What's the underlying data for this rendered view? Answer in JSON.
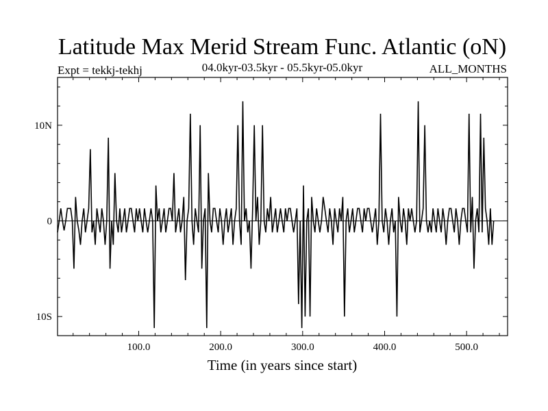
{
  "chart_data": {
    "type": "line",
    "title": "Latitude Max Merid Stream Func. Atlantic (oN)",
    "subtitle_left": "Expt = tekkj-tekhj",
    "subtitle_center": "04.0kyr-03.5kyr - 05.5kyr-05.0kyr",
    "subtitle_right": "ALL_MONTHS",
    "xlabel": "Time (in years since start)",
    "ylabel": "",
    "xlim": [
      1,
      550
    ],
    "ylim": [
      -12,
      15
    ],
    "x_ticks": [
      100,
      200,
      300,
      400,
      500
    ],
    "x_tick_labels": [
      "100.0",
      "200.0",
      "300.0",
      "400.0",
      "500.0"
    ],
    "y_ticks": [
      -10,
      0,
      10
    ],
    "y_tick_labels": [
      "10S",
      "0",
      "10N"
    ],
    "zero_line": true,
    "series": [
      {
        "name": "Latitude Max Merid Stream Func. Atlantic",
        "x_start": 1,
        "x_step": 2,
        "values": [
          -1.2,
          0.0,
          1.3,
          0.0,
          -1.0,
          0.0,
          1.3,
          1.3,
          1.3,
          0.0,
          -5.0,
          2.5,
          0.0,
          -1.0,
          -2.5,
          0.0,
          1.3,
          -1.2,
          0.0,
          1.3,
          7.5,
          -1.2,
          0.0,
          -2.5,
          1.3,
          0.0,
          -1.2,
          1.3,
          0.0,
          -2.5,
          0.0,
          8.7,
          -5.0,
          0.0,
          -2.5,
          5.0,
          0.0,
          -1.2,
          1.3,
          -1.2,
          0.0,
          1.3,
          -1.2,
          0.0,
          1.3,
          1.3,
          0.0,
          -1.2,
          1.3,
          0.0,
          1.3,
          0.0,
          -1.2,
          1.3,
          0.0,
          -1.2,
          0.0,
          1.3,
          0.0,
          -11.2,
          3.7,
          0.0,
          1.3,
          -1.2,
          0.0,
          1.3,
          -1.2,
          0.0,
          1.3,
          1.3,
          0.0,
          5.0,
          -1.2,
          0.0,
          1.3,
          -1.2,
          0.0,
          2.5,
          -6.2,
          0.0,
          1.3,
          11.2,
          0.0,
          -2.5,
          1.3,
          0.0,
          -1.2,
          10.0,
          -5.0,
          0.0,
          1.3,
          -11.2,
          5.0,
          0.0,
          -1.2,
          1.3,
          1.3,
          0.0,
          -1.2,
          1.3,
          0.0,
          -2.5,
          0.0,
          1.3,
          -1.2,
          0.0,
          1.3,
          -2.5,
          0.0,
          1.3,
          10.0,
          0.0,
          -2.5,
          12.5,
          0.0,
          1.3,
          -1.2,
          0.0,
          -5.0,
          1.3,
          10.0,
          0.0,
          2.5,
          -2.5,
          0.0,
          10.0,
          0.0,
          -1.2,
          1.3,
          0.0,
          2.5,
          -1.2,
          0.0,
          1.3,
          -1.2,
          0.0,
          1.3,
          0.0,
          -1.2,
          1.3,
          0.0,
          1.3,
          1.3,
          0.0,
          -1.2,
          0.0,
          1.3,
          -8.7,
          0.0,
          -11.2,
          3.7,
          -10.0,
          0.0,
          1.3,
          -10.0,
          2.5,
          0.0,
          -1.2,
          1.3,
          0.0,
          -1.2,
          0.0,
          2.5,
          1.3,
          0.0,
          -1.2,
          1.3,
          0.0,
          -2.5,
          1.3,
          0.0,
          -1.2,
          1.3,
          0.0,
          2.5,
          -10.0,
          0.0,
          1.3,
          -1.2,
          0.0,
          1.3,
          -1.2,
          0.0,
          1.3,
          1.3,
          0.0,
          -1.2,
          1.3,
          0.0,
          1.3,
          1.3,
          0.0,
          -1.2,
          0.0,
          1.3,
          -2.5,
          0.0,
          11.2,
          0.0,
          -1.2,
          1.3,
          0.0,
          -2.5,
          0.0,
          1.3,
          -1.2,
          0.0,
          -10.0,
          2.5,
          0.0,
          -1.2,
          1.3,
          0.0,
          -2.5,
          1.3,
          0.0,
          1.3,
          0.0,
          -1.2,
          0.0,
          12.5,
          -1.2,
          0.0,
          1.3,
          10.0,
          0.0,
          -1.2,
          0.0,
          -1.2,
          1.3,
          0.0,
          -1.2,
          1.3,
          0.0,
          -1.2,
          1.3,
          0.0,
          -2.5,
          0.0,
          1.3,
          1.3,
          0.0,
          -1.2,
          1.3,
          0.0,
          -2.5,
          0.0,
          1.3,
          1.3,
          0.0,
          -1.2,
          11.2,
          -1.2,
          2.5,
          -5.0,
          0.0,
          1.3,
          -1.2,
          11.2,
          -1.2,
          8.7,
          1.3,
          0.0,
          -2.5,
          1.3,
          -2.5,
          0.0
        ]
      }
    ]
  }
}
